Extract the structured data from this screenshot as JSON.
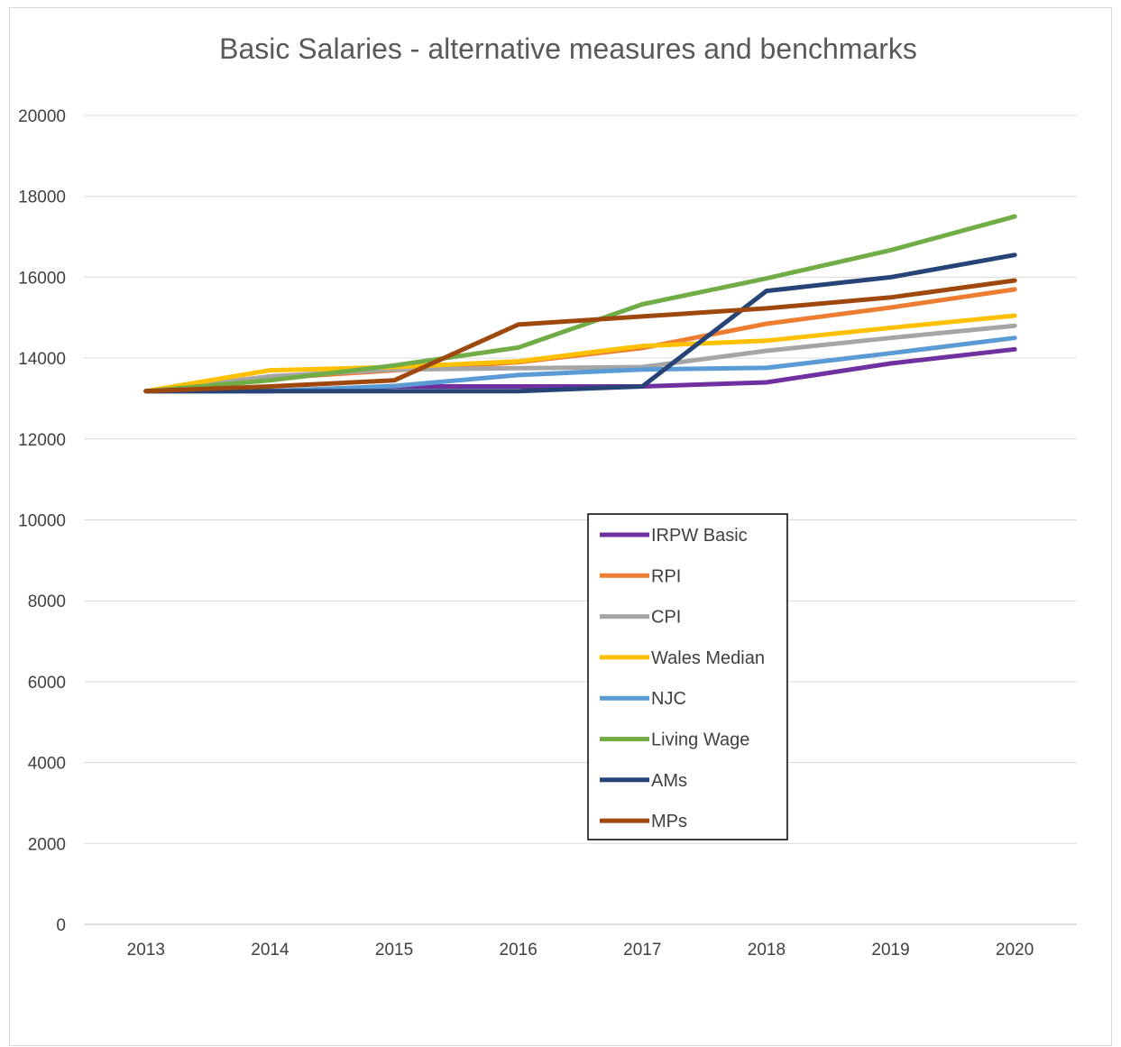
{
  "chart_data": {
    "type": "line",
    "title": "Basic Salaries - alternative measures and benchmarks",
    "xlabel": "",
    "ylabel": "",
    "categories": [
      "2013",
      "2014",
      "2015",
      "2016",
      "2017",
      "2018",
      "2019",
      "2020"
    ],
    "ylim": [
      0,
      20000
    ],
    "yticks": [
      0,
      2000,
      4000,
      6000,
      8000,
      10000,
      12000,
      14000,
      16000,
      18000,
      20000
    ],
    "grid": true,
    "legend_position": "center-right",
    "series": [
      {
        "name": "IRPW Basic",
        "color": "#7030A0",
        "values": [
          13184,
          13184,
          13300,
          13300,
          13300,
          13400,
          13868,
          14218
        ]
      },
      {
        "name": "RPI",
        "color": "#ED7D31",
        "values": [
          13184,
          13500,
          13700,
          13900,
          14250,
          14850,
          15250,
          15700
        ]
      },
      {
        "name": "CPI",
        "color": "#A5A5A5",
        "values": [
          13184,
          13550,
          13720,
          13750,
          13780,
          14180,
          14500,
          14800
        ]
      },
      {
        "name": "Wales Median",
        "color": "#FFC000",
        "values": [
          13184,
          13700,
          13780,
          13920,
          14300,
          14430,
          14750,
          15050
        ]
      },
      {
        "name": "NJC",
        "color": "#5B9BD5",
        "values": [
          13184,
          13184,
          13310,
          13580,
          13720,
          13760,
          14120,
          14500
        ]
      },
      {
        "name": "Living Wage",
        "color": "#70AD47",
        "values": [
          13184,
          13450,
          13820,
          14260,
          15330,
          15970,
          16670,
          17500
        ]
      },
      {
        "name": "AMs",
        "color": "#264478",
        "values": [
          13184,
          13184,
          13184,
          13184,
          13300,
          15660,
          16000,
          16550
        ]
      },
      {
        "name": "MPs",
        "color": "#9E480E",
        "values": [
          13184,
          13300,
          13450,
          14830,
          15030,
          15230,
          15500,
          15920
        ]
      }
    ]
  }
}
